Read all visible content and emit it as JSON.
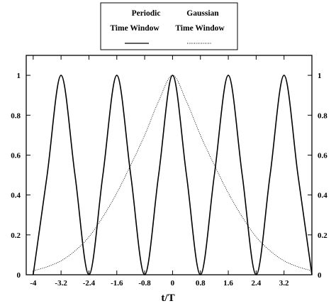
{
  "chart_data": {
    "type": "line",
    "xlabel": "t/T",
    "ylabel": "",
    "title": "",
    "xlim": [
      -4.2,
      4.0
    ],
    "ylim": [
      0,
      1.1
    ],
    "x_ticks": [
      -4,
      -3.2,
      -2.4,
      -1.6,
      -0.8,
      0,
      0.8,
      1.6,
      2.4,
      3.2
    ],
    "x_tick_labels": [
      "-4",
      "-3.2",
      "-2.4",
      "-1.6",
      "-0.8",
      "0",
      "0.8",
      "1.6",
      "2.4",
      "3.2"
    ],
    "y_ticks": [
      0,
      0.2,
      0.4,
      0.6,
      0.8,
      1
    ],
    "y_tick_labels": [
      "0",
      "0.2",
      "0.4",
      "0.6",
      "0.8",
      "1"
    ],
    "y_ticks_both_sides": true,
    "grid": false,
    "legend_position": "top-center",
    "legend": [
      {
        "line1": "Periodic",
        "line2": "Time Window",
        "style": "solid"
      },
      {
        "line1": "Gaussian",
        "line2": "Time Window",
        "style": "dotted"
      }
    ],
    "series": [
      {
        "style": "solid",
        "x": [
          -4.0,
          -3.6,
          -3.2,
          -2.8,
          -2.4,
          -2.0,
          -1.6,
          -1.2,
          -0.8,
          -0.4,
          0,
          0.4,
          0.8,
          1.2,
          1.6,
          2.0,
          2.4,
          2.8,
          3.2,
          3.6,
          4.0
        ],
        "y": [
          0,
          0.5,
          1,
          0.5,
          0,
          0.5,
          1,
          0.5,
          0,
          0.5,
          1,
          0.5,
          0,
          0.5,
          1,
          0.5,
          0,
          0.5,
          1,
          0.5,
          0
        ]
      },
      {
        "style": "dotted",
        "x": [
          -4.0,
          -3.6,
          -3.2,
          -2.8,
          -2.4,
          -2.0,
          -1.6,
          -1.2,
          -0.8,
          -0.4,
          0,
          0.4,
          0.8,
          1.2,
          1.6,
          2.0,
          2.4,
          2.8,
          3.2,
          3.6,
          4.0
        ],
        "y": [
          0.02,
          0.04,
          0.07,
          0.12,
          0.19,
          0.29,
          0.41,
          0.55,
          0.7,
          0.87,
          1.0,
          0.87,
          0.7,
          0.55,
          0.41,
          0.29,
          0.19,
          0.12,
          0.07,
          0.04,
          0.02
        ]
      }
    ]
  }
}
